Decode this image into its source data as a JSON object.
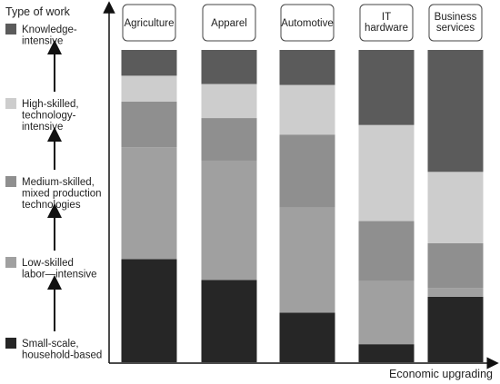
{
  "chart_data": {
    "type": "bar",
    "stacked": true,
    "y_axis_title": "Type of work",
    "x_axis_title": "Economic upgrading",
    "categories": [
      "Agriculture",
      "Apparel",
      "Automotive",
      "IT\nhardware",
      "Business\nservices"
    ],
    "levels": [
      {
        "label": "Small-scale,\nhousehold-based",
        "color": "#262626"
      },
      {
        "label": "Low-skilled\nlabor—intensive",
        "color": "#a0a0a0"
      },
      {
        "label": "Medium-skilled,\nmixed production\ntechnologies",
        "color": "#8f8f8f"
      },
      {
        "label": "High-skilled,\ntechnology-\nintensive",
        "color": "#cdcdcd"
      },
      {
        "label": "Knowledge-\nintensive",
        "color": "#5b5b5b"
      }
    ],
    "series": [
      {
        "values": [
          36,
          29,
          17,
          6,
          22
        ]
      },
      {
        "values": [
          39,
          42,
          36,
          21,
          3
        ]
      },
      {
        "values": [
          16,
          15,
          25,
          20,
          15
        ]
      },
      {
        "values": [
          9,
          12,
          17,
          32,
          24
        ]
      },
      {
        "values": [
          9,
          12,
          12,
          25,
          41
        ]
      }
    ]
  }
}
